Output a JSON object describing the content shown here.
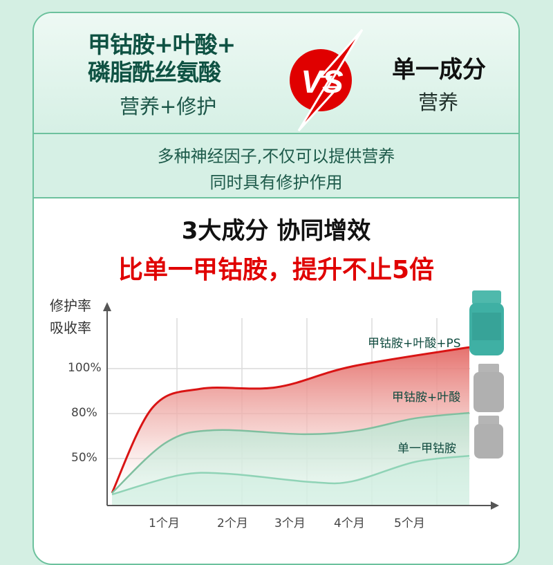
{
  "header": {
    "left_title": [
      "甲钴胺+叶酸+",
      "磷脂酰丝氨酸"
    ],
    "left_subtitle": "营养+修护",
    "vs_text": "VS",
    "right_title": "单一成分",
    "right_subtitle": "营养",
    "description": [
      "多种神经因子,不仅可以提供营养",
      "同时具有修护作用"
    ]
  },
  "headline": {
    "line1": "3大成分 协同增效",
    "line2": "比单一甲钴胺，提升不止5倍"
  },
  "colors": {
    "accent_green": "#6cc19d",
    "dark_green": "#0f5243",
    "red": "#e00000",
    "background": "#d4efe3"
  },
  "chart_data": {
    "type": "area",
    "ylabel": [
      "修护率",
      "吸收率"
    ],
    "y_ticks": [
      "100%",
      "80%",
      "50%"
    ],
    "y_tick_values": [
      100,
      80,
      50
    ],
    "x_ticks": [
      "1个月",
      "2个月",
      "3个月",
      "4个月",
      "5个月"
    ],
    "x_tick_values": [
      1,
      2,
      3,
      4,
      5
    ],
    "grid": true,
    "series": [
      {
        "name": "甲钴胺+叶酸+PS",
        "color": "#d91414",
        "x": [
          0,
          0.62,
          1.36,
          2.53,
          3.7,
          5.5
        ],
        "y": [
          27,
          82.5,
          91,
          91.7,
          101,
          109.5
        ]
      },
      {
        "name": "甲钴胺+叶酸",
        "color": "#7fbf9f",
        "x": [
          0,
          0.83,
          1.57,
          2.96,
          3.81,
          4.66,
          5.5
        ],
        "y": [
          27,
          60.6,
          68.9,
          66.2,
          68.9,
          76.8,
          80.3
        ]
      },
      {
        "name": "单一甲钴胺",
        "color": "#8fd3b6",
        "x": [
          0,
          1.04,
          1.79,
          3.06,
          3.7,
          4.66,
          5.5
        ],
        "y": [
          26,
          38.9,
          39.8,
          34.3,
          34.8,
          47.7,
          51.8
        ]
      }
    ]
  }
}
